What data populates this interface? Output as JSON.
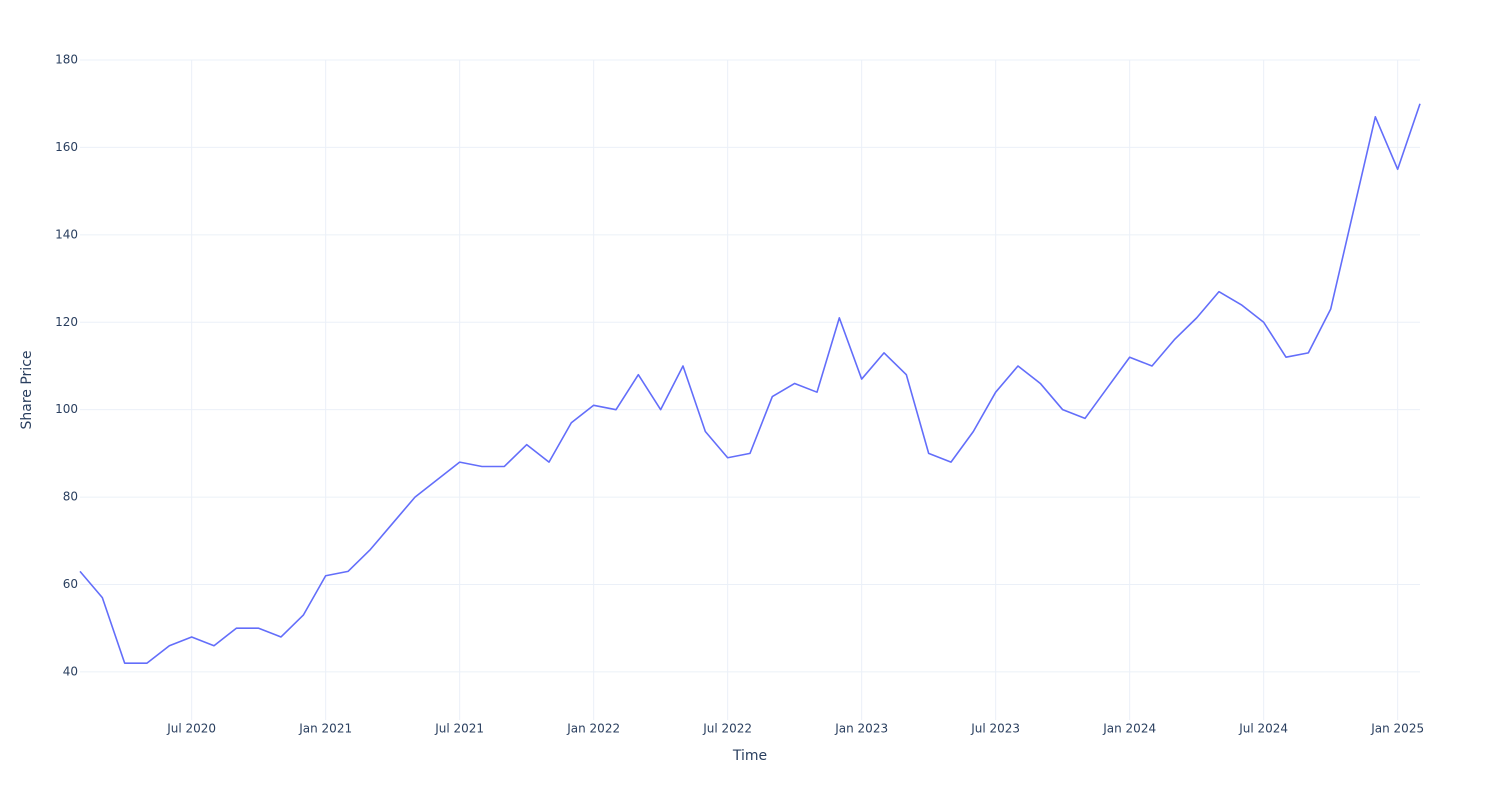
{
  "chart_data": {
    "type": "line",
    "x_label": "Time",
    "y_label": "Share Price",
    "x": [
      "2020-02",
      "2020-03",
      "2020-04",
      "2020-05",
      "2020-06",
      "2020-07",
      "2020-08",
      "2020-09",
      "2020-10",
      "2020-11",
      "2020-12",
      "2021-01",
      "2021-02",
      "2021-03",
      "2021-04",
      "2021-05",
      "2021-06",
      "2021-07",
      "2021-08",
      "2021-09",
      "2021-10",
      "2021-11",
      "2021-12",
      "2022-01",
      "2022-02",
      "2022-03",
      "2022-04",
      "2022-05",
      "2022-06",
      "2022-07",
      "2022-08",
      "2022-09",
      "2022-10",
      "2022-11",
      "2022-12",
      "2023-01",
      "2023-02",
      "2023-03",
      "2023-04",
      "2023-05",
      "2023-06",
      "2023-07",
      "2023-08",
      "2023-09",
      "2023-10",
      "2023-11",
      "2023-12",
      "2024-01",
      "2024-02",
      "2024-03",
      "2024-04",
      "2024-05",
      "2024-06",
      "2024-07",
      "2024-08",
      "2024-09",
      "2024-10",
      "2024-11",
      "2024-12",
      "2025-01",
      "2025-02"
    ],
    "series": [
      {
        "name": "Share Price",
        "color": "#636efa",
        "values": [
          63,
          57,
          42,
          42,
          46,
          48,
          46,
          50,
          50,
          48,
          53,
          62,
          63,
          68,
          74,
          80,
          84,
          88,
          87,
          87,
          92,
          88,
          97,
          101,
          100,
          108,
          100,
          110,
          95,
          89,
          90,
          103,
          106,
          104,
          121,
          107,
          113,
          108,
          90,
          88,
          95,
          104,
          110,
          106,
          100,
          98,
          105,
          112,
          110,
          116,
          121,
          127,
          124,
          120,
          112,
          113,
          123,
          145,
          167,
          155,
          170
        ]
      }
    ],
    "xlim": [
      "2020-02",
      "2025-02"
    ],
    "xticks": [
      {
        "value": "2020-07",
        "label": "Jul 2020"
      },
      {
        "value": "2021-01",
        "label": "Jan 2021"
      },
      {
        "value": "2021-07",
        "label": "Jul 2021"
      },
      {
        "value": "2022-01",
        "label": "Jan 2022"
      },
      {
        "value": "2022-07",
        "label": "Jul 2022"
      },
      {
        "value": "2023-01",
        "label": "Jan 2023"
      },
      {
        "value": "2023-07",
        "label": "Jul 2023"
      },
      {
        "value": "2024-01",
        "label": "Jan 2024"
      },
      {
        "value": "2024-07",
        "label": "Jul 2024"
      },
      {
        "value": "2025-01",
        "label": "Jan 2025"
      }
    ],
    "ylim": [
      29,
      180
    ],
    "yticks": [
      40,
      60,
      80,
      100,
      120,
      140,
      160,
      180
    ],
    "grid": true
  }
}
